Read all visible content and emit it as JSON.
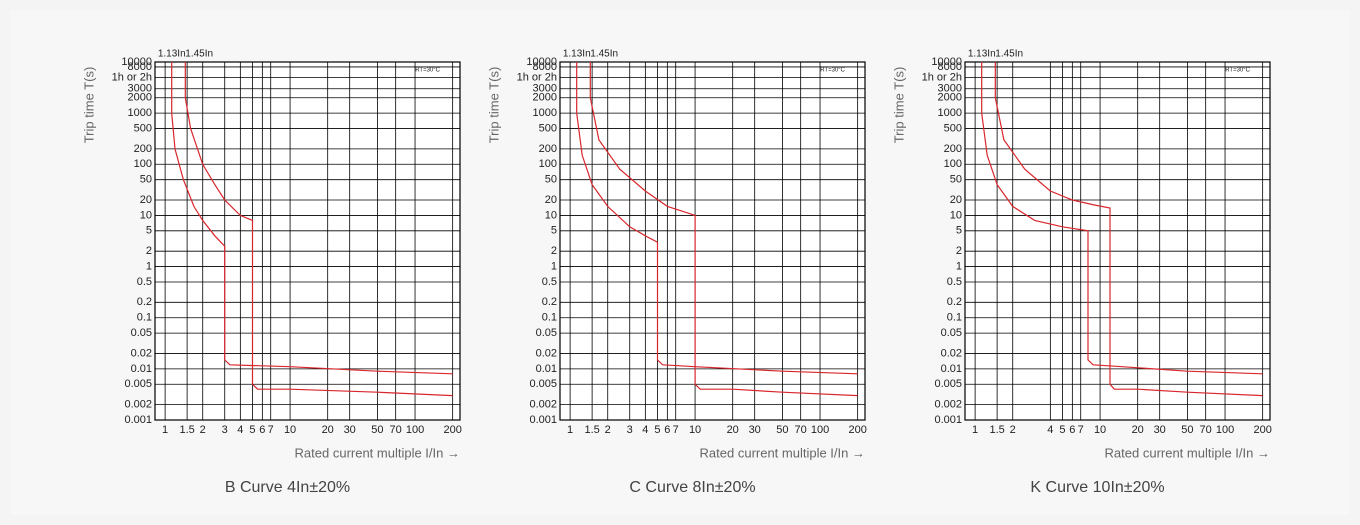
{
  "chart_data": [
    {
      "type": "trip-curve",
      "title": "B Curve 4In±20%",
      "x_label": "Rated current multiple I/In →",
      "y_label": "Trip time T(s)",
      "annotations": [
        "1.13In",
        "1.45In"
      ],
      "note": "RT=30°C",
      "log_x": true,
      "log_y": true,
      "grid": true,
      "xlim": [
        0.83,
        229
      ],
      "ylim": [
        0.001,
        10000
      ],
      "xticks": [
        1,
        1.5,
        2,
        3,
        4,
        5,
        6,
        7,
        10,
        20,
        30,
        50,
        70,
        100,
        200
      ],
      "yticks": [
        10000,
        8000,
        {
          "value": 5000,
          "label": "1h or 2h"
        },
        3000,
        2000,
        1000,
        500,
        200,
        100,
        50,
        20,
        10,
        5,
        2,
        1,
        0.5,
        0.2,
        0.1,
        0.05,
        0.02,
        0.01,
        0.005,
        0.002,
        0.001
      ],
      "series": [
        {
          "color": "#d9262c",
          "x": [
            1.13,
            1.13,
            1.2,
            1.4,
            1.7,
            2,
            2.5,
            3,
            3,
            3.3,
            10,
            50,
            200
          ],
          "values": [
            10000,
            1000,
            200,
            50,
            15,
            8,
            4,
            2.5,
            0.015,
            0.012,
            0.011,
            0.009,
            0.008
          ]
        },
        {
          "color": "#d9262c",
          "x": [
            1.45,
            1.45,
            1.6,
            2,
            2.5,
            3,
            4,
            5,
            5,
            5.5,
            10,
            50,
            200
          ],
          "values": [
            10000,
            2000,
            500,
            100,
            40,
            20,
            10,
            8,
            0.005,
            0.004,
            0.004,
            0.0035,
            0.003
          ]
        }
      ]
    },
    {
      "type": "trip-curve",
      "title": "C Curve 8In±20%",
      "x_label": "Rated current multiple I/In →",
      "y_label": "Trip time T(s)",
      "annotations": [
        "1.13In",
        "1.45In"
      ],
      "note": "RT=30°C",
      "log_x": true,
      "log_y": true,
      "grid": true,
      "xlim": [
        0.83,
        229
      ],
      "ylim": [
        0.001,
        10000
      ],
      "xticks": [
        1,
        1.5,
        2,
        3,
        4,
        5,
        6,
        7,
        10,
        20,
        30,
        50,
        70,
        100,
        200
      ],
      "yticks": [
        10000,
        8000,
        {
          "value": 5000,
          "label": "1h or 2h"
        },
        3000,
        2000,
        1000,
        500,
        200,
        100,
        50,
        20,
        10,
        5,
        2,
        1,
        0.5,
        0.2,
        0.1,
        0.05,
        0.02,
        0.01,
        0.005,
        0.002,
        0.001
      ],
      "series": [
        {
          "color": "#d9262c",
          "x": [
            1.13,
            1.13,
            1.25,
            1.5,
            2,
            3,
            4,
            5,
            5,
            5.5,
            10,
            50,
            200
          ],
          "values": [
            10000,
            1000,
            150,
            40,
            15,
            6,
            4,
            3,
            0.015,
            0.012,
            0.011,
            0.009,
            0.008
          ]
        },
        {
          "color": "#d9262c",
          "x": [
            1.45,
            1.45,
            1.7,
            2.5,
            4,
            6,
            8,
            10,
            10,
            11,
            20,
            50,
            200
          ],
          "values": [
            10000,
            2000,
            300,
            80,
            30,
            15,
            12,
            10,
            0.005,
            0.004,
            0.004,
            0.0035,
            0.003
          ]
        }
      ]
    },
    {
      "type": "trip-curve",
      "title": "K Curve 10In±20%",
      "x_label": "Rated current multiple I/In →",
      "y_label": "Trip time T(s)",
      "annotations": [
        "1.13In",
        "1.45In"
      ],
      "note": "RT=30°C",
      "log_x": true,
      "log_y": true,
      "grid": true,
      "xlim": [
        0.83,
        229
      ],
      "ylim": [
        0.001,
        10000
      ],
      "xticks": [
        1,
        1.5,
        2,
        4,
        5,
        6,
        7,
        10,
        20,
        30,
        50,
        70,
        100,
        200
      ],
      "yticks": [
        10000,
        8000,
        {
          "value": 5000,
          "label": "1h or 2h"
        },
        3000,
        2000,
        1000,
        500,
        200,
        100,
        50,
        20,
        10,
        5,
        2,
        1,
        0.5,
        0.2,
        0.1,
        0.05,
        0.02,
        0.01,
        0.005,
        0.002,
        0.001
      ],
      "series": [
        {
          "color": "#d9262c",
          "x": [
            1.13,
            1.13,
            1.25,
            1.5,
            2,
            3,
            5,
            8,
            8,
            8.8,
            15,
            50,
            200
          ],
          "values": [
            10000,
            1000,
            150,
            40,
            15,
            8,
            6,
            5,
            0.015,
            0.012,
            0.011,
            0.009,
            0.008
          ]
        },
        {
          "color": "#d9262c",
          "x": [
            1.45,
            1.45,
            1.7,
            2.5,
            4,
            6,
            9,
            12,
            12,
            13,
            20,
            50,
            200
          ],
          "values": [
            10000,
            2000,
            300,
            80,
            30,
            20,
            16,
            14,
            0.005,
            0.004,
            0.004,
            0.0035,
            0.003
          ]
        }
      ]
    }
  ]
}
